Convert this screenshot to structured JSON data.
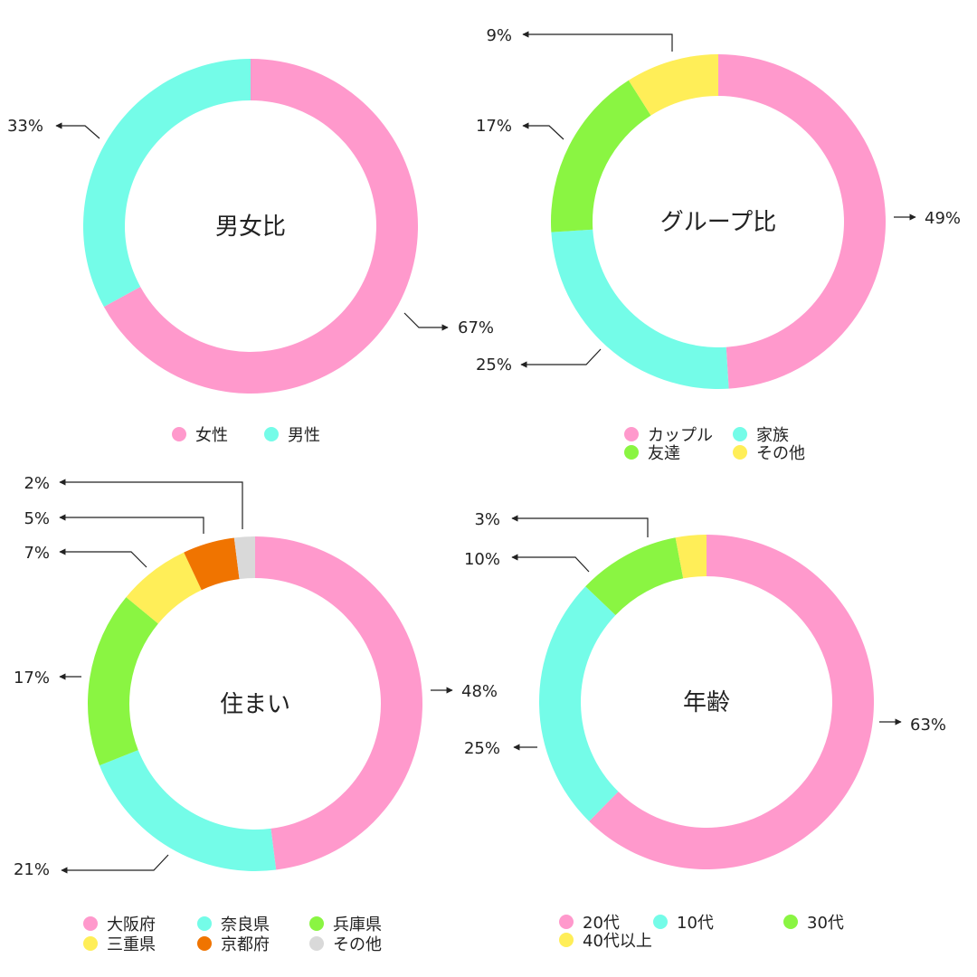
{
  "colors": {
    "pink": "#FF99CC",
    "cyan": "#74FCE8",
    "green": "#8AF542",
    "yellow": "#FFEE58",
    "orange": "#F07400",
    "gray": "#D9D9D9",
    "text": "#222222",
    "line": "#222222"
  },
  "chart_data": [
    {
      "type": "pie",
      "title": "男女比",
      "slices": [
        {
          "label": "女性",
          "value": 67,
          "display": "67%",
          "color": "#FF99CC"
        },
        {
          "label": "男性",
          "value": 33,
          "display": "33%",
          "color": "#74FCE8"
        }
      ],
      "legend": [
        {
          "label": "女性",
          "color": "#FF99CC"
        },
        {
          "label": "男性",
          "color": "#74FCE8"
        }
      ]
    },
    {
      "type": "pie",
      "title": "グループ比",
      "slices": [
        {
          "label": "カップル",
          "value": 49,
          "display": "49%",
          "color": "#FF99CC"
        },
        {
          "label": "家族",
          "value": 25,
          "display": "25%",
          "color": "#74FCE8"
        },
        {
          "label": "友達",
          "value": 17,
          "display": "17%",
          "color": "#8AF542"
        },
        {
          "label": "その他",
          "value": 9,
          "display": "9%",
          "color": "#FFEE58"
        }
      ],
      "legend": [
        {
          "label": "カップル",
          "color": "#FF99CC"
        },
        {
          "label": "家族",
          "color": "#74FCE8"
        },
        {
          "label": "友達",
          "color": "#8AF542"
        },
        {
          "label": "その他",
          "color": "#FFEE58"
        }
      ]
    },
    {
      "type": "pie",
      "title": "住まい",
      "slices": [
        {
          "label": "大阪府",
          "value": 48,
          "display": "48%",
          "color": "#FF99CC"
        },
        {
          "label": "奈良県",
          "value": 21,
          "display": "21%",
          "color": "#74FCE8"
        },
        {
          "label": "兵庫県",
          "value": 17,
          "display": "17%",
          "color": "#8AF542"
        },
        {
          "label": "三重県",
          "value": 7,
          "display": "7%",
          "color": "#FFEE58"
        },
        {
          "label": "京都府",
          "value": 5,
          "display": "5%",
          "color": "#F07400"
        },
        {
          "label": "その他",
          "value": 2,
          "display": "2%",
          "color": "#D9D9D9"
        }
      ],
      "legend": [
        {
          "label": "大阪府",
          "color": "#FF99CC"
        },
        {
          "label": "奈良県",
          "color": "#74FCE8"
        },
        {
          "label": "兵庫県",
          "color": "#8AF542"
        },
        {
          "label": "三重県",
          "color": "#FFEE58"
        },
        {
          "label": "京都府",
          "color": "#F07400"
        },
        {
          "label": "その他",
          "color": "#D9D9D9"
        }
      ]
    },
    {
      "type": "pie",
      "title": "年齢",
      "slices": [
        {
          "label": "20代",
          "value": 63,
          "display": "63%",
          "color": "#FF99CC"
        },
        {
          "label": "10代",
          "value": 25,
          "display": "25%",
          "color": "#74FCE8"
        },
        {
          "label": "30代",
          "value": 10,
          "display": "10%",
          "color": "#8AF542"
        },
        {
          "label": "40代以上",
          "value": 3,
          "display": "3%",
          "color": "#FFEE58"
        }
      ],
      "legend": [
        {
          "label": "20代",
          "color": "#FF99CC"
        },
        {
          "label": "10代",
          "color": "#74FCE8"
        },
        {
          "label": "30代",
          "color": "#8AF542"
        },
        {
          "label": "40代以上",
          "color": "#FFEE58"
        }
      ]
    }
  ]
}
